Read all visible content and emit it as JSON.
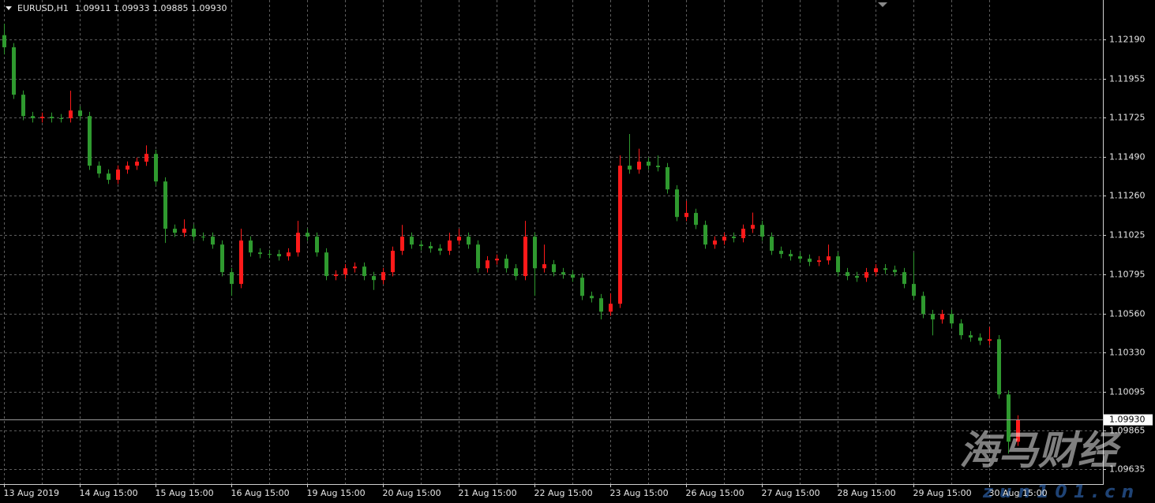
{
  "chart_data": {
    "type": "candlestick",
    "title": "EURUSD,H1",
    "quote": "1.09911 1.09933 1.09885 1.09930",
    "categories": [
      "13 Aug 2019",
      null,
      null,
      null,
      null,
      null,
      null,
      null,
      "14 Aug 15:00",
      null,
      null,
      null,
      null,
      null,
      null,
      null,
      "15 Aug 15:00",
      null,
      null,
      null,
      null,
      null,
      null,
      null,
      "16 Aug 15:00",
      null,
      null,
      null,
      null,
      null,
      null,
      null,
      "19 Aug 15:00",
      null,
      null,
      null,
      null,
      null,
      null,
      null,
      "20 Aug 15:00",
      null,
      null,
      null,
      null,
      null,
      null,
      null,
      "21 Aug 15:00",
      null,
      null,
      null,
      null,
      null,
      null,
      null,
      "22 Aug 15:00",
      null,
      null,
      null,
      null,
      null,
      null,
      null,
      "23 Aug 15:00",
      null,
      null,
      null,
      null,
      null,
      null,
      null,
      "26 Aug 15:00",
      null,
      null,
      null,
      null,
      null,
      null,
      null,
      "27 Aug 15:00",
      null,
      null,
      null,
      null,
      null,
      null,
      null,
      "28 Aug 15:00",
      null,
      null,
      null,
      null,
      null,
      null,
      null,
      "29 Aug 15:00",
      null,
      null,
      null,
      null,
      null,
      null,
      null,
      "30 Aug 15:00",
      null,
      null,
      null
    ],
    "open": [
      1.12215,
      1.12143,
      1.11861,
      1.11734,
      1.11721,
      1.1173,
      1.11721,
      1.11721,
      1.11767,
      1.11734,
      1.11439,
      1.11392,
      1.11355,
      1.11416,
      1.11439,
      1.11463,
      1.11509,
      1.11345,
      1.11064,
      1.1104,
      1.11064,
      1.11017,
      1.11017,
      1.1097,
      1.10806,
      1.10736,
      1.10994,
      1.10923,
      1.10914,
      1.10914,
      1.109,
      1.10923,
      1.1104,
      1.11017,
      1.10923,
      1.10783,
      1.10792,
      1.10829,
      1.10839,
      1.10783,
      1.10759,
      1.10806,
      1.10933,
      1.11017,
      1.1097,
      1.10961,
      1.10947,
      1.10933,
      1.10994,
      1.11017,
      1.1097,
      1.10829,
      1.10876,
      1.10886,
      1.10829,
      1.10783,
      1.11017,
      1.10829,
      1.10853,
      1.10806,
      1.10792,
      1.10773,
      1.10665,
      1.10651,
      1.10571,
      1.10618,
      1.11439,
      1.11416,
      1.11463,
      1.11439,
      1.1143,
      1.11298,
      1.11134,
      1.11158,
      1.11087,
      1.1097,
      1.10994,
      1.11017,
      1.11008,
      1.11064,
      1.11087,
      1.11017,
      1.10933,
      1.10914,
      1.109,
      1.10886,
      1.10867,
      1.10876,
      1.109,
      1.10806,
      1.10783,
      1.10773,
      1.10806,
      1.10829,
      1.1082,
      1.10806,
      1.10736,
      1.10665,
      1.10557,
      1.10525,
      1.10557,
      1.10501,
      1.10431,
      1.10417,
      1.10398,
      1.10407,
      1.10079,
      1.09798
    ],
    "high": [
      1.12283,
      1.12168,
      1.11886,
      1.11759,
      1.11755,
      1.11755,
      1.11746,
      1.11885,
      1.11792,
      1.11759,
      1.11464,
      1.11417,
      1.11441,
      1.11464,
      1.11488,
      1.1156,
      1.11534,
      1.1137,
      1.11089,
      1.1112,
      1.11089,
      1.11042,
      1.11042,
      1.10995,
      1.10831,
      1.11064,
      1.11019,
      1.10948,
      1.10939,
      1.10939,
      1.10948,
      1.11111,
      1.11065,
      1.11042,
      1.10948,
      1.10817,
      1.10854,
      1.10864,
      1.10864,
      1.10808,
      1.10831,
      1.10958,
      1.11087,
      1.11042,
      1.10995,
      1.10986,
      1.10972,
      1.1104,
      1.11064,
      1.11042,
      1.10995,
      1.10901,
      1.10911,
      1.10911,
      1.10854,
      1.11111,
      1.11042,
      1.1097,
      1.10878,
      1.10831,
      1.10817,
      1.10798,
      1.1069,
      1.10676,
      1.1068,
      1.115,
      1.11627,
      1.1154,
      1.11488,
      1.115,
      1.11455,
      1.11323,
      1.1123,
      1.11183,
      1.11112,
      1.11019,
      1.11042,
      1.11042,
      1.11089,
      1.1116,
      1.11112,
      1.11042,
      1.10958,
      1.10939,
      1.10925,
      1.10911,
      1.10901,
      1.1097,
      1.10925,
      1.10831,
      1.10808,
      1.10831,
      1.10854,
      1.10854,
      1.10845,
      1.10831,
      1.10923,
      1.1069,
      1.10582,
      1.10582,
      1.10582,
      1.10526,
      1.10456,
      1.10442,
      1.1048,
      1.10432,
      1.10104,
      1.09955
    ],
    "low": [
      1.121,
      1.11836,
      1.11709,
      1.11696,
      1.11696,
      1.11696,
      1.11696,
      1.11696,
      1.11709,
      1.11414,
      1.11367,
      1.1133,
      1.1133,
      1.11391,
      1.11414,
      1.11438,
      1.1132,
      1.1098,
      1.11015,
      1.11015,
      1.10992,
      1.10992,
      1.10945,
      1.10781,
      1.10665,
      1.10711,
      1.10898,
      1.10889,
      1.10889,
      1.10875,
      1.10875,
      1.10898,
      1.10992,
      1.10898,
      1.10758,
      1.10758,
      1.10767,
      1.10804,
      1.10758,
      1.107,
      1.10734,
      1.10781,
      1.10908,
      1.10945,
      1.10936,
      1.10922,
      1.10908,
      1.10908,
      1.10969,
      1.10945,
      1.10804,
      1.10804,
      1.10851,
      1.10804,
      1.10758,
      1.10758,
      1.10665,
      1.10804,
      1.10781,
      1.10767,
      1.10748,
      1.1064,
      1.10626,
      1.10525,
      1.10546,
      1.10593,
      1.11391,
      1.11391,
      1.11414,
      1.11405,
      1.11273,
      1.11109,
      1.11109,
      1.11062,
      1.10945,
      1.10945,
      1.10969,
      1.10983,
      1.10983,
      1.11039,
      1.10992,
      1.10908,
      1.10889,
      1.10875,
      1.10861,
      1.10842,
      1.10842,
      1.10851,
      1.10781,
      1.10758,
      1.10748,
      1.10748,
      1.10781,
      1.10795,
      1.10781,
      1.10711,
      1.1064,
      1.10532,
      1.1043,
      1.105,
      1.10476,
      1.10406,
      1.10392,
      1.10373,
      1.10373,
      1.10054,
      1.09727,
      1.09773
    ],
    "close": [
      1.12143,
      1.11861,
      1.11734,
      1.11721,
      1.1173,
      1.11721,
      1.11721,
      1.11767,
      1.11734,
      1.11439,
      1.11392,
      1.11355,
      1.11416,
      1.11439,
      1.11463,
      1.11509,
      1.11345,
      1.11064,
      1.1104,
      1.11064,
      1.11017,
      1.11017,
      1.1097,
      1.10806,
      1.10736,
      1.10994,
      1.10923,
      1.10914,
      1.10914,
      1.109,
      1.10923,
      1.1104,
      1.11017,
      1.10923,
      1.10783,
      1.10792,
      1.10829,
      1.10839,
      1.10783,
      1.10759,
      1.10806,
      1.10933,
      1.11017,
      1.1097,
      1.10961,
      1.10947,
      1.10933,
      1.10994,
      1.11017,
      1.1097,
      1.10829,
      1.10876,
      1.10886,
      1.10829,
      1.10783,
      1.11017,
      1.10829,
      1.10853,
      1.10806,
      1.10792,
      1.10773,
      1.10665,
      1.10651,
      1.10571,
      1.10618,
      1.11439,
      1.11416,
      1.11463,
      1.11439,
      1.1143,
      1.11298,
      1.11134,
      1.11158,
      1.11087,
      1.1097,
      1.10994,
      1.11017,
      1.11008,
      1.11064,
      1.11087,
      1.11017,
      1.10933,
      1.10914,
      1.109,
      1.10886,
      1.10867,
      1.10876,
      1.109,
      1.10806,
      1.10783,
      1.10773,
      1.10806,
      1.10829,
      1.1082,
      1.10806,
      1.10736,
      1.10665,
      1.10557,
      1.10525,
      1.10557,
      1.10501,
      1.10431,
      1.10417,
      1.10398,
      1.10407,
      1.10079,
      1.09798,
      1.0993
    ],
    "up_color": "#ff1a1a",
    "down_color": "#2f9a2f",
    "grid": true,
    "grid_color": "#5c5c5c",
    "ylim": [
      1.09546,
      1.12424
    ],
    "yticks": [
      {
        "value": 1.1219,
        "label": "1.12190"
      },
      1.11955,
      1.11725,
      {
        "value": 1.1149,
        "label": "1.11490"
      },
      {
        "value": 1.1126,
        "label": "1.11260"
      },
      1.11025,
      1.10795,
      {
        "value": 1.1056,
        "label": "1.10560"
      },
      {
        "value": 1.1033,
        "label": "1.10330"
      },
      1.10095,
      1.09865,
      1.09635
    ],
    "last_price": {
      "value": 1.0993,
      "label": "1.09930"
    },
    "watermark": "海马财经",
    "watermark_url": "zun101.cn"
  }
}
